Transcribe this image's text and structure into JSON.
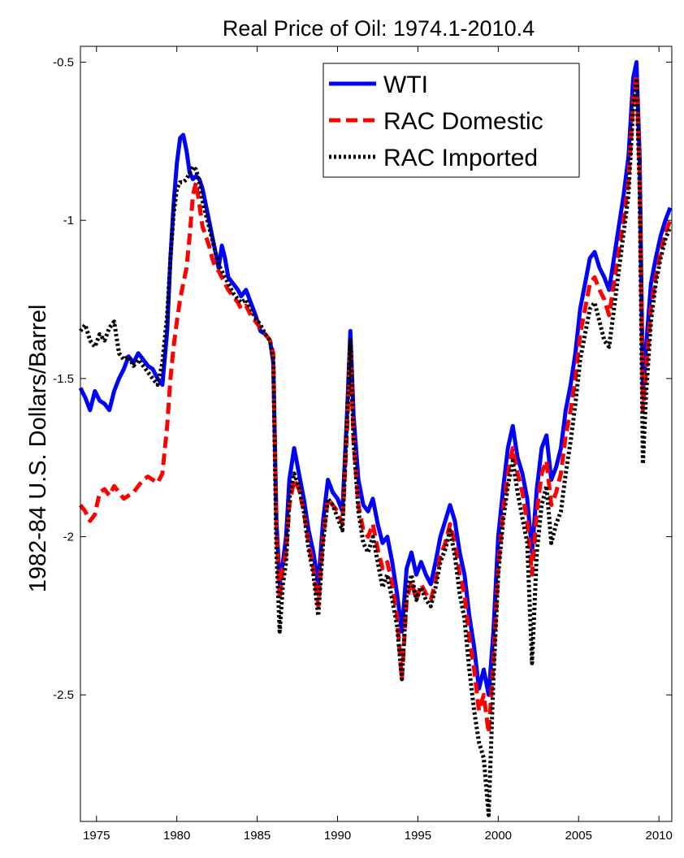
{
  "chart_data": {
    "type": "line",
    "title": "Real Price of Oil: 1974.1-2010.4",
    "xlabel": "",
    "ylabel": "1982-84 U.S. Dollars/Barrel",
    "xlim": [
      1974.0,
      2010.8
    ],
    "ylim": [
      -2.9,
      -0.45
    ],
    "xticks": [
      1975,
      1980,
      1985,
      1990,
      1995,
      2000,
      2005,
      2010
    ],
    "xtick_labels": [
      "1975",
      "1980",
      "1985",
      "1990",
      "1995",
      "2000",
      "2005",
      "2010"
    ],
    "yticks": [
      -0.5,
      -1,
      -1.5,
      -2,
      -2.5
    ],
    "ytick_labels": [
      "-0.5",
      "-1",
      "-1.5",
      "-2",
      "-2.5"
    ],
    "grid": false,
    "legend_position": "top-right",
    "series": [
      {
        "name": "WTI",
        "color": "#0000ff",
        "style": "solid",
        "x": [
          1974.0,
          1974.3,
          1974.6,
          1974.9,
          1975.2,
          1975.5,
          1975.8,
          1976.1,
          1976.4,
          1976.7,
          1977.0,
          1977.3,
          1977.6,
          1977.9,
          1978.2,
          1978.5,
          1978.8,
          1979.1,
          1979.4,
          1979.6,
          1979.8,
          1980.0,
          1980.2,
          1980.4,
          1980.6,
          1980.8,
          1981.0,
          1981.2,
          1981.4,
          1981.6,
          1981.8,
          1982.0,
          1982.2,
          1982.4,
          1982.6,
          1982.8,
          1983.0,
          1983.2,
          1983.5,
          1983.8,
          1984.0,
          1984.3,
          1984.6,
          1984.9,
          1985.2,
          1985.5,
          1985.8,
          1986.0,
          1986.2,
          1986.4,
          1986.6,
          1986.8,
          1987.0,
          1987.3,
          1987.6,
          1987.9,
          1988.2,
          1988.5,
          1988.8,
          1989.1,
          1989.4,
          1989.7,
          1990.0,
          1990.3,
          1990.6,
          1990.8,
          1991.0,
          1991.3,
          1991.6,
          1991.9,
          1992.2,
          1992.5,
          1992.8,
          1993.1,
          1993.4,
          1993.7,
          1994.0,
          1994.3,
          1994.6,
          1994.9,
          1995.2,
          1995.5,
          1995.8,
          1996.1,
          1996.4,
          1996.7,
          1997.0,
          1997.3,
          1997.6,
          1997.9,
          1998.2,
          1998.5,
          1998.8,
          1999.1,
          1999.4,
          1999.7,
          2000.0,
          2000.3,
          2000.6,
          2000.9,
          2001.2,
          2001.5,
          2001.8,
          2002.1,
          2002.4,
          2002.7,
          2003.0,
          2003.3,
          2003.6,
          2003.9,
          2004.2,
          2004.5,
          2004.8,
          2005.1,
          2005.4,
          2005.7,
          2006.0,
          2006.3,
          2006.6,
          2006.9,
          2007.2,
          2007.5,
          2007.8,
          2008.1,
          2008.4,
          2008.6,
          2008.8,
          2009.0,
          2009.2,
          2009.5,
          2009.8,
          2010.1,
          2010.4,
          2010.7
        ],
        "values": [
          -1.53,
          -1.56,
          -1.6,
          -1.54,
          -1.57,
          -1.58,
          -1.6,
          -1.54,
          -1.5,
          -1.47,
          -1.43,
          -1.45,
          -1.42,
          -1.44,
          -1.46,
          -1.47,
          -1.5,
          -1.52,
          -1.35,
          -1.12,
          -0.95,
          -0.82,
          -0.74,
          -0.73,
          -0.78,
          -0.85,
          -0.87,
          -0.86,
          -0.87,
          -0.9,
          -0.95,
          -1.0,
          -1.05,
          -1.1,
          -1.15,
          -1.08,
          -1.12,
          -1.18,
          -1.2,
          -1.22,
          -1.24,
          -1.22,
          -1.26,
          -1.3,
          -1.35,
          -1.36,
          -1.38,
          -1.45,
          -1.95,
          -2.15,
          -2.08,
          -2.0,
          -1.82,
          -1.72,
          -1.8,
          -1.88,
          -1.98,
          -2.05,
          -2.15,
          -1.95,
          -1.82,
          -1.86,
          -1.88,
          -1.92,
          -1.6,
          -1.35,
          -1.62,
          -1.82,
          -1.9,
          -1.92,
          -1.88,
          -1.96,
          -2.02,
          -2.0,
          -2.08,
          -2.18,
          -2.3,
          -2.1,
          -2.05,
          -2.12,
          -2.08,
          -2.12,
          -2.15,
          -2.08,
          -2.0,
          -1.95,
          -1.9,
          -1.95,
          -2.05,
          -2.12,
          -2.25,
          -2.35,
          -2.48,
          -2.42,
          -2.5,
          -2.3,
          -2.0,
          -1.85,
          -1.72,
          -1.65,
          -1.75,
          -1.8,
          -1.88,
          -2.05,
          -1.85,
          -1.72,
          -1.68,
          -1.82,
          -1.78,
          -1.72,
          -1.6,
          -1.52,
          -1.42,
          -1.28,
          -1.2,
          -1.12,
          -1.1,
          -1.15,
          -1.18,
          -1.22,
          -1.12,
          -1.02,
          -0.92,
          -0.8,
          -0.55,
          -0.5,
          -0.8,
          -1.55,
          -1.4,
          -1.2,
          -1.12,
          -1.05,
          -1.0,
          -0.96
        ]
      },
      {
        "name": "RAC Domestic",
        "color": "#ff0000",
        "style": "dashed",
        "x": [
          1974.0,
          1974.3,
          1974.6,
          1974.9,
          1975.2,
          1975.5,
          1975.8,
          1976.1,
          1976.4,
          1976.7,
          1977.0,
          1977.3,
          1977.6,
          1977.9,
          1978.2,
          1978.5,
          1978.8,
          1979.1,
          1979.4,
          1979.6,
          1979.8,
          1980.0,
          1980.2,
          1980.4,
          1980.6,
          1980.8,
          1981.0,
          1981.2,
          1981.4,
          1981.6,
          1981.8,
          1982.0,
          1982.2,
          1982.4,
          1982.6,
          1982.8,
          1983.0,
          1983.2,
          1983.5,
          1983.8,
          1984.0,
          1984.3,
          1984.6,
          1984.9,
          1985.2,
          1985.5,
          1985.8,
          1986.0,
          1986.2,
          1986.4,
          1986.6,
          1986.8,
          1987.0,
          1987.3,
          1987.6,
          1987.9,
          1988.2,
          1988.5,
          1988.8,
          1989.1,
          1989.4,
          1989.7,
          1990.0,
          1990.3,
          1990.6,
          1990.8,
          1991.0,
          1991.3,
          1991.6,
          1991.9,
          1992.2,
          1992.5,
          1992.8,
          1993.1,
          1993.4,
          1993.7,
          1994.0,
          1994.3,
          1994.6,
          1994.9,
          1995.2,
          1995.5,
          1995.8,
          1996.1,
          1996.4,
          1996.7,
          1997.0,
          1997.3,
          1997.6,
          1997.9,
          1998.2,
          1998.5,
          1998.8,
          1999.1,
          1999.4,
          1999.7,
          2000.0,
          2000.3,
          2000.6,
          2000.9,
          2001.2,
          2001.5,
          2001.8,
          2002.1,
          2002.4,
          2002.7,
          2003.0,
          2003.3,
          2003.6,
          2003.9,
          2004.2,
          2004.5,
          2004.8,
          2005.1,
          2005.4,
          2005.7,
          2006.0,
          2006.3,
          2006.6,
          2006.9,
          2007.2,
          2007.5,
          2007.8,
          2008.1,
          2008.4,
          2008.6,
          2008.8,
          2009.0,
          2009.2,
          2009.5,
          2009.8,
          2010.1,
          2010.4,
          2010.7
        ],
        "values": [
          -1.9,
          -1.92,
          -1.95,
          -1.93,
          -1.86,
          -1.85,
          -1.87,
          -1.84,
          -1.86,
          -1.88,
          -1.87,
          -1.86,
          -1.84,
          -1.82,
          -1.81,
          -1.82,
          -1.83,
          -1.8,
          -1.65,
          -1.5,
          -1.4,
          -1.32,
          -1.25,
          -1.2,
          -1.15,
          -1.05,
          -0.92,
          -0.88,
          -0.95,
          -1.02,
          -1.05,
          -1.08,
          -1.12,
          -1.15,
          -1.16,
          -1.18,
          -1.2,
          -1.22,
          -1.24,
          -1.26,
          -1.28,
          -1.27,
          -1.3,
          -1.32,
          -1.34,
          -1.36,
          -1.38,
          -1.42,
          -1.98,
          -2.2,
          -2.1,
          -2.05,
          -1.9,
          -1.82,
          -1.85,
          -1.92,
          -2.02,
          -2.1,
          -2.22,
          -2.0,
          -1.88,
          -1.9,
          -1.92,
          -1.96,
          -1.65,
          -1.4,
          -1.7,
          -1.9,
          -1.98,
          -2.0,
          -1.96,
          -2.04,
          -2.1,
          -2.08,
          -2.15,
          -2.25,
          -2.45,
          -2.2,
          -2.14,
          -2.2,
          -2.15,
          -2.18,
          -2.2,
          -2.14,
          -2.06,
          -2.02,
          -1.96,
          -2.02,
          -2.12,
          -2.18,
          -2.32,
          -2.42,
          -2.55,
          -2.5,
          -2.62,
          -2.4,
          -2.1,
          -1.92,
          -1.8,
          -1.72,
          -1.8,
          -1.86,
          -1.95,
          -2.12,
          -1.92,
          -1.8,
          -1.76,
          -1.9,
          -1.86,
          -1.8,
          -1.68,
          -1.6,
          -1.5,
          -1.36,
          -1.28,
          -1.2,
          -1.18,
          -1.22,
          -1.25,
          -1.3,
          -1.2,
          -1.1,
          -1.0,
          -0.88,
          -0.62,
          -0.54,
          -0.85,
          -1.6,
          -1.48,
          -1.28,
          -1.18,
          -1.1,
          -1.04,
          -1.0
        ]
      },
      {
        "name": "RAC Imported",
        "color": "#000000",
        "style": "dotted",
        "x": [
          1974.0,
          1974.3,
          1974.6,
          1974.9,
          1975.2,
          1975.5,
          1975.8,
          1976.1,
          1976.4,
          1976.7,
          1977.0,
          1977.3,
          1977.6,
          1977.9,
          1978.2,
          1978.5,
          1978.8,
          1979.1,
          1979.4,
          1979.6,
          1979.8,
          1980.0,
          1980.2,
          1980.4,
          1980.6,
          1980.8,
          1981.0,
          1981.2,
          1981.4,
          1981.6,
          1981.8,
          1982.0,
          1982.2,
          1982.4,
          1982.6,
          1982.8,
          1983.0,
          1983.2,
          1983.5,
          1983.8,
          1984.0,
          1984.3,
          1984.6,
          1984.9,
          1985.2,
          1985.5,
          1985.8,
          1986.0,
          1986.2,
          1986.4,
          1986.6,
          1986.8,
          1987.0,
          1987.3,
          1987.6,
          1987.9,
          1988.2,
          1988.5,
          1988.8,
          1989.1,
          1989.4,
          1989.7,
          1990.0,
          1990.3,
          1990.6,
          1990.8,
          1991.0,
          1991.3,
          1991.6,
          1991.9,
          1992.2,
          1992.5,
          1992.8,
          1993.1,
          1993.4,
          1993.7,
          1994.0,
          1994.3,
          1994.6,
          1994.9,
          1995.2,
          1995.5,
          1995.8,
          1996.1,
          1996.4,
          1996.7,
          1997.0,
          1997.3,
          1997.6,
          1997.9,
          1998.2,
          1998.5,
          1998.8,
          1999.1,
          1999.4,
          1999.7,
          2000.0,
          2000.3,
          2000.6,
          2000.9,
          2001.2,
          2001.5,
          2001.8,
          2002.1,
          2002.4,
          2002.7,
          2003.0,
          2003.3,
          2003.6,
          2003.9,
          2004.2,
          2004.5,
          2004.8,
          2005.1,
          2005.4,
          2005.7,
          2006.0,
          2006.3,
          2006.6,
          2006.9,
          2007.2,
          2007.5,
          2007.8,
          2008.1,
          2008.4,
          2008.6,
          2008.8,
          2009.0,
          2009.2,
          2009.5,
          2009.8,
          2010.1,
          2010.4,
          2010.7
        ],
        "values": [
          -1.35,
          -1.33,
          -1.38,
          -1.4,
          -1.36,
          -1.38,
          -1.34,
          -1.32,
          -1.42,
          -1.44,
          -1.43,
          -1.46,
          -1.44,
          -1.46,
          -1.48,
          -1.5,
          -1.52,
          -1.45,
          -1.3,
          -1.12,
          -0.98,
          -0.9,
          -0.88,
          -0.88,
          -0.87,
          -0.85,
          -0.83,
          -0.84,
          -0.88,
          -0.94,
          -0.98,
          -1.02,
          -1.06,
          -1.1,
          -1.14,
          -1.16,
          -1.18,
          -1.2,
          -1.23,
          -1.25,
          -1.26,
          -1.25,
          -1.28,
          -1.31,
          -1.33,
          -1.36,
          -1.38,
          -1.44,
          -2.05,
          -2.3,
          -2.15,
          -2.08,
          -1.88,
          -1.8,
          -1.84,
          -1.92,
          -2.04,
          -2.12,
          -2.25,
          -2.02,
          -1.88,
          -1.9,
          -1.94,
          -1.98,
          -1.62,
          -1.38,
          -1.7,
          -1.92,
          -2.02,
          -2.05,
          -2.0,
          -2.08,
          -2.16,
          -2.12,
          -2.2,
          -2.28,
          -2.45,
          -2.18,
          -2.12,
          -2.2,
          -2.16,
          -2.2,
          -2.22,
          -2.16,
          -2.08,
          -2.04,
          -1.98,
          -2.06,
          -2.18,
          -2.26,
          -2.42,
          -2.55,
          -2.65,
          -2.7,
          -2.88,
          -2.45,
          -2.12,
          -1.95,
          -1.84,
          -1.76,
          -1.86,
          -1.94,
          -2.02,
          -2.4,
          -2.05,
          -1.9,
          -1.84,
          -2.02,
          -1.96,
          -1.92,
          -1.8,
          -1.7,
          -1.58,
          -1.44,
          -1.36,
          -1.28,
          -1.26,
          -1.32,
          -1.38,
          -1.4,
          -1.28,
          -1.16,
          -1.04,
          -0.92,
          -0.64,
          -0.56,
          -0.9,
          -1.77,
          -1.55,
          -1.32,
          -1.2,
          -1.12,
          -1.06,
          -1.02
        ]
      }
    ]
  }
}
